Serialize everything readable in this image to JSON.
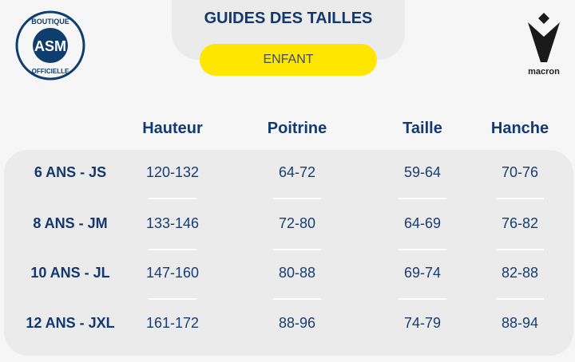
{
  "header": {
    "title": "GUIDES DES TAILLES",
    "category": "ENFANT"
  },
  "logos": {
    "left": "BOUTIQUE ASM OFFICIELLE",
    "right": "macron"
  },
  "table": {
    "columns": [
      "Hauteur",
      "Poitrine",
      "Taille",
      "Hanche"
    ],
    "rows": [
      {
        "label": "6 ANS - JS",
        "values": [
          "120-132",
          "64-72",
          "59-64",
          "70-76"
        ]
      },
      {
        "label": "8 ANS - JM",
        "values": [
          "133-146",
          "72-80",
          "64-69",
          "76-82"
        ]
      },
      {
        "label": "10 ANS - JL",
        "values": [
          "147-160",
          "80-88",
          "69-74",
          "82-88"
        ]
      },
      {
        "label": "12 ANS - JXL",
        "values": [
          "161-172",
          "88-96",
          "74-79",
          "88-94"
        ]
      }
    ]
  },
  "colors": {
    "navy": "#12386f",
    "yellow": "#ffe600",
    "panel": "#ebebeb"
  }
}
